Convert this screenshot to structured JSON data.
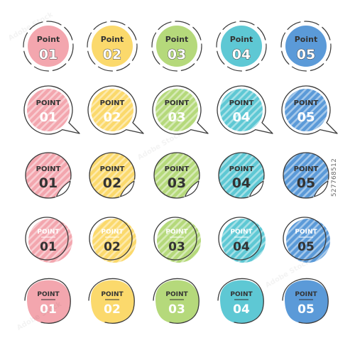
{
  "palette": [
    "#f3a6ae",
    "#fbd96c",
    "#b5d97b",
    "#5ec8d4",
    "#5b9ad8"
  ],
  "stroke_color": "#3a3a3a",
  "stripe_color": "#ffffff",
  "label_light": "#ffffff",
  "label_dark": "#333333",
  "rows": [
    {
      "style": "dashed-ring",
      "title": "Point",
      "numbers": [
        "01",
        "02",
        "03",
        "04",
        "05"
      ]
    },
    {
      "style": "speech-bubble-striped",
      "title": "POINT",
      "numbers": [
        "01",
        "02",
        "03",
        "04",
        "05"
      ]
    },
    {
      "style": "peeling-sticker",
      "title": "POINT",
      "numbers": [
        "01",
        "02",
        "03",
        "04",
        "05"
      ]
    },
    {
      "style": "offset-outline",
      "title": "POINT",
      "numbers": [
        "01",
        "02",
        "03",
        "04",
        "05"
      ]
    },
    {
      "style": "hand-drawn-blob",
      "title": "POINT",
      "numbers": [
        "01",
        "02",
        "03",
        "04",
        "05"
      ]
    }
  ],
  "stock_id": "527768512",
  "watermark": "Adobe Stock"
}
